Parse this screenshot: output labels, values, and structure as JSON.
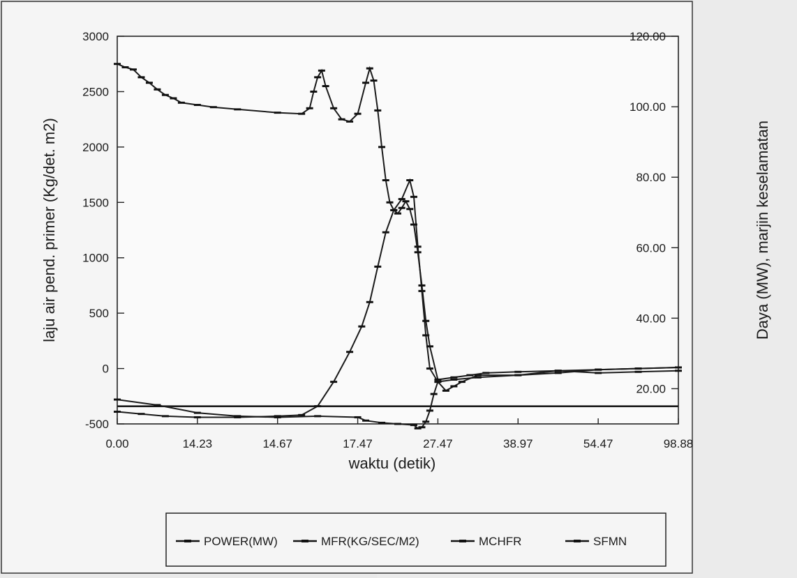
{
  "chart_data": {
    "type": "line",
    "xlabel": "waktu (detik)",
    "ylabel": "laju air pend. primer (Kg/det. m2)",
    "ylabel_right": "Daya (MW), marjin keselamatan",
    "x_tick_labels": [
      "0.00",
      "14.23",
      "14.67",
      "17.47",
      "27.47",
      "38.97",
      "54.47",
      "98.88"
    ],
    "y_ticks": [
      3000,
      2500,
      2000,
      1500,
      1000,
      500,
      0,
      -500
    ],
    "y_ticks_right": [
      "120.00",
      "100.00",
      "80.00",
      "60.00",
      "40.00",
      "20.00"
    ],
    "ylim": [
      -500,
      3000
    ],
    "ylim_right": [
      10,
      120
    ],
    "x_index_range": [
      0,
      7
    ],
    "series": [
      {
        "name": "POWER(MW)",
        "axis": "right",
        "marker": "none",
        "x": [
          0,
          0.5,
          1.0,
          1.5,
          2.0,
          2.5,
          3.0,
          3.5,
          3.8,
          4.0,
          4.2,
          4.6,
          5.0,
          5.5,
          6.0,
          6.5,
          7.0
        ],
        "y": [
          15,
          15,
          15,
          15,
          15,
          15,
          15,
          15,
          15,
          15,
          15,
          15,
          15,
          15,
          15,
          15,
          15
        ]
      },
      {
        "name": "MFR(KG/SEC/M2)",
        "axis": "left",
        "marker": "dash",
        "x": [
          0,
          0.5,
          1.0,
          1.5,
          2.0,
          2.5,
          3.0,
          3.1,
          3.3,
          3.5,
          3.7,
          3.75,
          3.8,
          3.85,
          3.9,
          3.95,
          4.0,
          4.1,
          4.2,
          4.3,
          4.5,
          5.0,
          5.5,
          6.0,
          6.5,
          7.0
        ],
        "y": [
          -280,
          -330,
          -400,
          -430,
          -440,
          -430,
          -440,
          -470,
          -490,
          -500,
          -510,
          -540,
          -530,
          -480,
          -380,
          -230,
          -120,
          -200,
          -160,
          -120,
          -60,
          -60,
          -20,
          -40,
          -30,
          -20
        ]
      },
      {
        "name": "MCHFR",
        "axis": "left",
        "marker": "dash",
        "x": [
          0,
          0.3,
          0.6,
          1.0,
          1.5,
          2.0,
          2.3,
          2.5,
          2.7,
          2.9,
          3.05,
          3.15,
          3.25,
          3.35,
          3.45,
          3.55,
          3.65,
          3.7,
          3.75,
          3.8,
          3.85,
          3.9,
          4.0,
          4.2,
          4.5,
          5.0,
          5.5,
          6.0,
          6.5,
          7.0
        ],
        "y": [
          -390,
          -410,
          -430,
          -440,
          -440,
          -430,
          -420,
          -340,
          -120,
          150,
          380,
          600,
          920,
          1230,
          1430,
          1530,
          1700,
          1550,
          1100,
          700,
          300,
          0,
          -120,
          -100,
          -80,
          -60,
          -40,
          -10,
          0,
          10
        ]
      },
      {
        "name": "SFMN",
        "axis": "left",
        "marker": "dash",
        "x": [
          0,
          0.1,
          0.2,
          0.3,
          0.4,
          0.5,
          0.6,
          0.7,
          0.8,
          1.0,
          1.2,
          1.5,
          2.0,
          2.3,
          2.4,
          2.45,
          2.5,
          2.55,
          2.6,
          2.7,
          2.8,
          2.9,
          3.0,
          3.1,
          3.15,
          3.2,
          3.25,
          3.3,
          3.35,
          3.4,
          3.45,
          3.5,
          3.55,
          3.6,
          3.65,
          3.7,
          3.75,
          3.8,
          3.85,
          3.9,
          4.0,
          4.2,
          4.4,
          4.6,
          5.0,
          5.5,
          6.0,
          6.5,
          7.0
        ],
        "y": [
          2750,
          2720,
          2700,
          2630,
          2580,
          2520,
          2470,
          2440,
          2400,
          2380,
          2360,
          2340,
          2310,
          2300,
          2350,
          2500,
          2630,
          2690,
          2550,
          2350,
          2250,
          2230,
          2300,
          2580,
          2710,
          2600,
          2330,
          2000,
          1700,
          1500,
          1430,
          1400,
          1450,
          1510,
          1440,
          1300,
          1050,
          750,
          430,
          200,
          -100,
          -80,
          -60,
          -40,
          -30,
          -20,
          -10,
          0,
          10
        ]
      }
    ],
    "legend": {
      "placement": "bottom",
      "entries": [
        "POWER(MW)",
        "MFR(KG/SEC/M2)",
        "MCHFR",
        "SFMN"
      ]
    },
    "grid": false
  }
}
